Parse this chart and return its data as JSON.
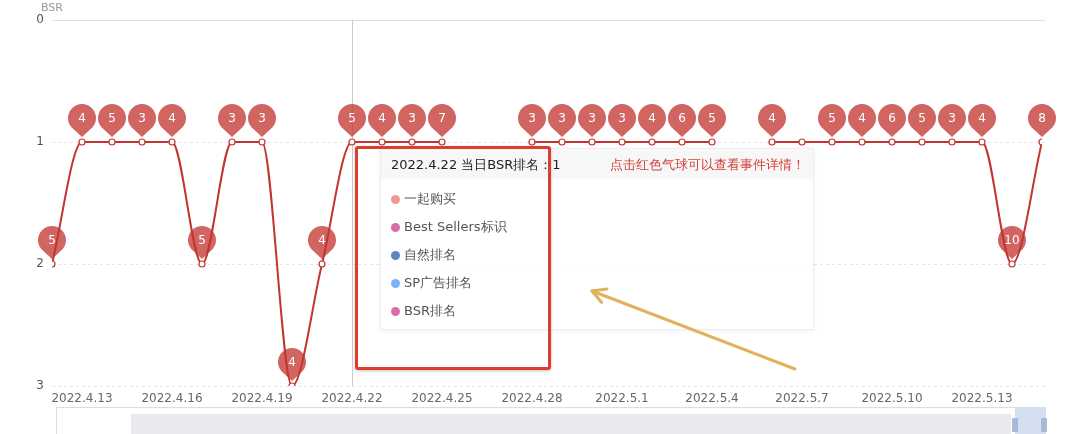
{
  "chart_data": {
    "type": "line",
    "ylabel": "BSR",
    "x": [
      "2022-04-12",
      "2022-04-13",
      "2022-04-14",
      "2022-04-15",
      "2022-04-16",
      "2022-04-17",
      "2022-04-18",
      "2022-04-19",
      "2022-04-20",
      "2022-04-21",
      "2022-04-22",
      "2022-04-23",
      "2022-04-24",
      "2022-04-25",
      "2022-04-26",
      "2022-04-27",
      "2022-04-28",
      "2022-04-29",
      "2022-04-30",
      "2022-05-01",
      "2022-05-02",
      "2022-05-03",
      "2022-05-04",
      "2022-05-05",
      "2022-05-06",
      "2022-05-07",
      "2022-05-08",
      "2022-05-09",
      "2022-05-10",
      "2022-05-11",
      "2022-05-12",
      "2022-05-13",
      "2022-05-14",
      "2022-05-15"
    ],
    "values": [
      2,
      1,
      1,
      1,
      1,
      2,
      1,
      1,
      3,
      2,
      1,
      1,
      1,
      1,
      null,
      null,
      1,
      1,
      1,
      1,
      1,
      1,
      1,
      null,
      1,
      1,
      1,
      1,
      1,
      1,
      1,
      1,
      2,
      1
    ],
    "color": "#c23531",
    "xlim": [
      "2022-04-12",
      "2022-05-15"
    ],
    "xticks": [
      {
        "value": "2022-04-13",
        "label": "2022.4.13"
      },
      {
        "value": "2022-04-16",
        "label": "2022.4.16"
      },
      {
        "value": "2022-04-19",
        "label": "2022.4.19"
      },
      {
        "value": "2022-04-22",
        "label": "2022.4.22"
      },
      {
        "value": "2022-04-25",
        "label": "2022.4.25"
      },
      {
        "value": "2022-04-28",
        "label": "2022.4.28"
      },
      {
        "value": "2022-05-01",
        "label": "2022.5.1"
      },
      {
        "value": "2022-05-04",
        "label": "2022.5.4"
      },
      {
        "value": "2022-05-07",
        "label": "2022.5.7"
      },
      {
        "value": "2022-05-10",
        "label": "2022.5.10"
      },
      {
        "value": "2022-05-13",
        "label": "2022.5.13"
      }
    ],
    "ylim": [
      3,
      0
    ],
    "yticks": [
      0,
      1,
      2,
      3
    ],
    "grid": "y",
    "marker": "circle",
    "ref_lines": [
      {
        "axis": "x",
        "value": "2022-04-22",
        "color": "#cccccc"
      }
    ],
    "annotations": [
      {
        "text": "5",
        "x": "2022-04-12",
        "y": 2
      },
      {
        "text": "4",
        "x": "2022-04-13",
        "y": 1
      },
      {
        "text": "5",
        "x": "2022-04-14",
        "y": 1
      },
      {
        "text": "3",
        "x": "2022-04-15",
        "y": 1
      },
      {
        "text": "4",
        "x": "2022-04-16",
        "y": 1
      },
      {
        "text": "5",
        "x": "2022-04-17",
        "y": 2
      },
      {
        "text": "3",
        "x": "2022-04-18",
        "y": 1
      },
      {
        "text": "3",
        "x": "2022-04-19",
        "y": 1
      },
      {
        "text": "4",
        "x": "2022-04-20",
        "y": 3
      },
      {
        "text": "4",
        "x": "2022-04-21",
        "y": 2
      },
      {
        "text": "5",
        "x": "2022-04-22",
        "y": 1
      },
      {
        "text": "4",
        "x": "2022-04-23",
        "y": 1
      },
      {
        "text": "3",
        "x": "2022-04-24",
        "y": 1
      },
      {
        "text": "7",
        "x": "2022-04-25",
        "y": 1
      },
      {
        "text": "3",
        "x": "2022-04-28",
        "y": 1
      },
      {
        "text": "3",
        "x": "2022-04-29",
        "y": 1
      },
      {
        "text": "3",
        "x": "2022-04-30",
        "y": 1
      },
      {
        "text": "3",
        "x": "2022-05-01",
        "y": 1
      },
      {
        "text": "4",
        "x": "2022-05-02",
        "y": 1
      },
      {
        "text": "6",
        "x": "2022-05-03",
        "y": 1
      },
      {
        "text": "5",
        "x": "2022-05-04",
        "y": 1
      },
      {
        "text": "4",
        "x": "2022-05-06",
        "y": 1
      },
      {
        "text": "5",
        "x": "2022-05-08",
        "y": 1
      },
      {
        "text": "4",
        "x": "2022-05-09",
        "y": 1
      },
      {
        "text": "6",
        "x": "2022-05-10",
        "y": 1
      },
      {
        "text": "5",
        "x": "2022-05-11",
        "y": 1
      },
      {
        "text": "3",
        "x": "2022-05-12",
        "y": 1
      },
      {
        "text": "4",
        "x": "2022-05-13",
        "y": 1
      },
      {
        "text": "10",
        "x": "2022-05-14",
        "y": 2
      },
      {
        "text": "8",
        "x": "2022-05-15",
        "y": 1
      },
      "2022.4.22 当日BSR排名：1",
      "点击红色气球可以查看事件详情！",
      "一起购买",
      "Best Sellers标识",
      "自然排名",
      "SP广告排名",
      "BSR排名"
    ]
  }
}
